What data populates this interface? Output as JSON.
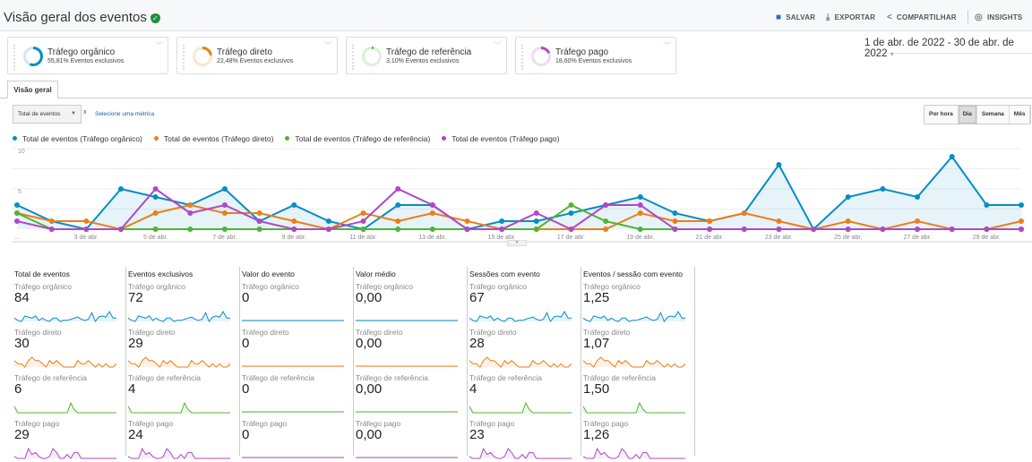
{
  "header": {
    "title": "Visão geral dos eventos",
    "save": "SALVAR",
    "export": "EXPORTAR",
    "share": "COMPARTILHAR",
    "insights": "INSIGHTS",
    "insights_badge": "1"
  },
  "segments": [
    {
      "name": "Tráfego orgânico",
      "pct": "55,81% Eventos exclusivos",
      "share": 55.81,
      "color": "#058dc7"
    },
    {
      "name": "Tráfego direto",
      "pct": "22,48% Eventos exclusivos",
      "share": 22.48,
      "color": "#ed7e17"
    },
    {
      "name": "Tráfego de referência",
      "pct": "3,10% Eventos exclusivos",
      "share": 3.1,
      "color": "#50b432"
    },
    {
      "name": "Tráfego pago",
      "pct": "18,60% Eventos exclusivos",
      "share": 18.6,
      "color": "#af49c5"
    }
  ],
  "date_range": "1 de abr. de 2022 - 30 de abr. de 2022",
  "tab": "Visão geral",
  "metric_select": "Total de eventos",
  "remove": "x",
  "select_metric": "Selecione uma métrica",
  "periods": [
    "Por hora",
    "Dia",
    "Semana",
    "Mês"
  ],
  "active_period": "Dia",
  "chart_data": {
    "type": "line",
    "x": [
      "1 de abr.",
      "2 de abr.",
      "3 de abr.",
      "4 de abr.",
      "5 de abr.",
      "6 de abr.",
      "7 de abr.",
      "8 de abr.",
      "9 de abr.",
      "10 de abr.",
      "11 de abr.",
      "12 de abr.",
      "13 de abr.",
      "14 de abr.",
      "15 de abr.",
      "16 de abr.",
      "17 de abr.",
      "18 de abr.",
      "19 de abr.",
      "20 de abr.",
      "21 de abr.",
      "22 de abr.",
      "23 de abr.",
      "24 de abr.",
      "25 de abr.",
      "26 de abr.",
      "27 de abr.",
      "28 de abr.",
      "29 de abr.",
      "30 de abr."
    ],
    "x_tick_labels": [
      "...",
      "3 de abr.",
      "5 de abr.",
      "7 de abr.",
      "9 de abr.",
      "11 de abr.",
      "13 de abr.",
      "15 de abr.",
      "17 de abr.",
      "19 de abr.",
      "21 de abr.",
      "23 de abr.",
      "25 de abr.",
      "27 de abr.",
      "29 de abr."
    ],
    "y_ticks": [
      "5",
      "10"
    ],
    "ylim": [
      0,
      10
    ],
    "grid": true,
    "series": [
      {
        "name": "Total de eventos (Tráfego orgânico)",
        "color": "#058dc7",
        "area": true,
        "values": [
          3,
          1,
          0,
          5,
          4,
          3,
          5,
          1,
          3,
          1,
          0,
          3,
          3,
          0,
          1,
          1,
          2,
          3,
          4,
          2,
          1,
          2,
          8,
          0,
          4,
          5,
          4,
          9,
          3,
          3
        ]
      },
      {
        "name": "Total de eventos (Tráfego direto)",
        "color": "#ed7e17",
        "values": [
          2,
          1,
          1,
          0,
          2,
          3,
          2,
          2,
          1,
          0,
          2,
          1,
          2,
          1,
          0,
          0,
          0,
          0,
          2,
          1,
          1,
          2,
          1,
          0,
          1,
          0,
          1,
          0,
          0,
          1
        ]
      },
      {
        "name": "Total de eventos (Tráfego de referência)",
        "color": "#50b432",
        "values": [
          2,
          0,
          0,
          0,
          0,
          0,
          0,
          0,
          0,
          0,
          0,
          0,
          0,
          0,
          0,
          0,
          3,
          1,
          0,
          0,
          0,
          0,
          0,
          0,
          0,
          0,
          0,
          0,
          0,
          0
        ]
      },
      {
        "name": "Total de eventos (Tráfego pago)",
        "color": "#af49c5",
        "values": [
          1,
          0,
          0,
          0,
          5,
          2,
          3,
          1,
          0,
          0,
          1,
          5,
          3,
          0,
          0,
          2,
          0,
          3,
          3,
          0,
          0,
          0,
          0,
          0,
          0,
          0,
          0,
          0,
          0,
          0
        ]
      }
    ]
  },
  "metrics": [
    {
      "title": "Total de eventos",
      "values": [
        "84",
        "30",
        "6",
        "29"
      ],
      "flat": false
    },
    {
      "title": "Eventos exclusivos",
      "values": [
        "72",
        "29",
        "4",
        "24"
      ],
      "flat": false
    },
    {
      "title": "Valor do evento",
      "values": [
        "0",
        "0",
        "0",
        "0"
      ],
      "flat": true
    },
    {
      "title": "Valor médio",
      "values": [
        "0,00",
        "0,00",
        "0,00",
        "0,00"
      ],
      "flat": true
    },
    {
      "title": "Sessões com evento",
      "values": [
        "67",
        "28",
        "4",
        "23"
      ],
      "flat": false
    },
    {
      "title": "Eventos / sessão com evento",
      "values": [
        "1,25",
        "1,07",
        "1,50",
        "1,26"
      ],
      "flat": false
    }
  ]
}
